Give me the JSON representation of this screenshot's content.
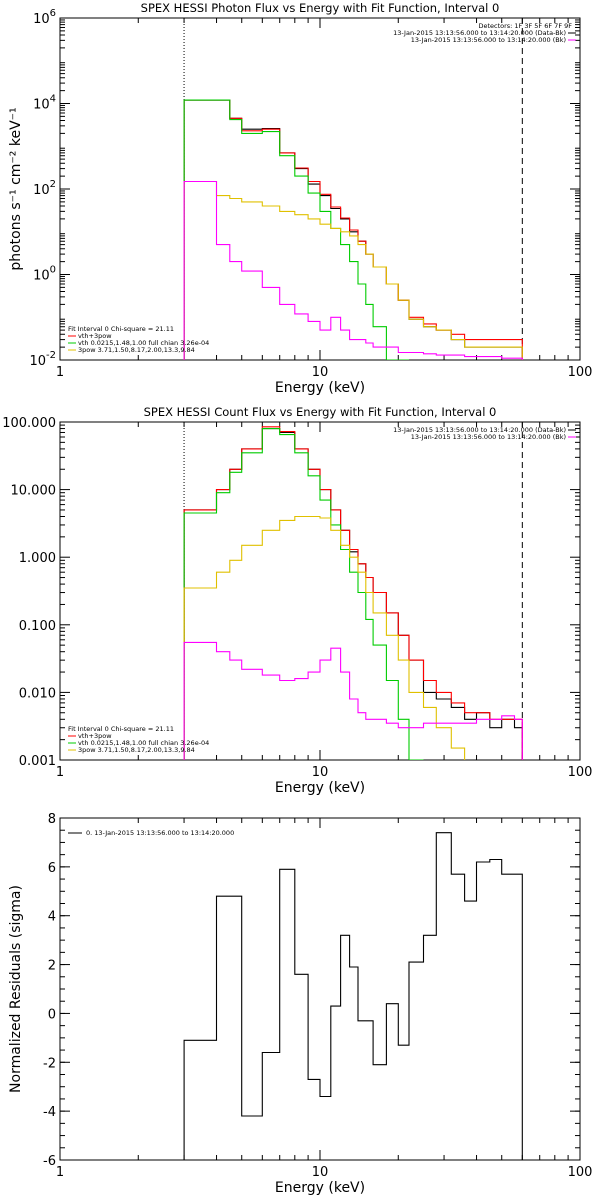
{
  "chart_data": [
    {
      "type": "line",
      "title": "SPEX HESSI Photon Flux vs Energy with Fit Function, Interval 0",
      "xlabel": "Energy (keV)",
      "ylabel": "photons s⁻¹ cm⁻² keV⁻¹",
      "x_scale": "log",
      "y_scale": "log",
      "xlim": [
        1,
        100
      ],
      "ylim": [
        0.01,
        1000000
      ],
      "x_ticks": [
        {
          "v": 1,
          "label": "1"
        },
        {
          "v": 10,
          "label": "10"
        },
        {
          "v": 100,
          "label": "100"
        }
      ],
      "y_ticks": [
        {
          "v": 0.01,
          "label": "10",
          "exp": "-2"
        },
        {
          "v": 1,
          "label": "10",
          "exp": "0"
        },
        {
          "v": 100,
          "label": "10",
          "exp": "2"
        },
        {
          "v": 10000,
          "label": "10",
          "exp": "4"
        },
        {
          "v": 1000000,
          "label": "10",
          "exp": "6"
        }
      ],
      "vlines": [
        {
          "x": 3,
          "style": "dotted"
        },
        {
          "x": 60,
          "style": "dashed"
        }
      ],
      "legend_top": {
        "header": "Detectors: 1F 3F 5F 6F 7F 9F",
        "entries": [
          {
            "label": "13-Jan-2015 13:13:56.000 to 13:14:20.000 (Data-Bk)",
            "color": "#000000"
          },
          {
            "label": "13-Jan-2015 13:13:56.000 to 13:14:20.000 (Bk)",
            "color": "#ff00ff"
          }
        ]
      },
      "legend_bottom": {
        "header": "Fit Interval 0   Chi-square = 21.11",
        "entries": [
          {
            "label": "vth+3pow",
            "color": "#ff0000"
          },
          {
            "label": "vth 0.0215,1.48,1.00  full chian 3.26e-04",
            "color": "#00cc00"
          },
          {
            "label": "3pow 3.71,1.50,8.17,2.00,13.3,9.84",
            "color": "#e0c000"
          }
        ]
      },
      "edges": [
        3.0,
        3.5,
        4.0,
        4.5,
        5.0,
        6.0,
        7.0,
        8.0,
        9.0,
        10.0,
        11.0,
        12.0,
        13.0,
        14.0,
        15.0,
        16.0,
        18.0,
        20.0,
        22.0,
        25.0,
        28.0,
        32.0,
        36.0,
        40.0,
        45.0,
        50.0,
        56.0,
        60.0
      ],
      "series": [
        {
          "color": "#000000",
          "values": [
            12000,
            12000,
            12000,
            4500,
            2500,
            2600,
            700,
            300,
            130,
            70,
            35,
            20,
            10,
            6,
            3,
            1.5,
            0.6,
            0.25,
            0.09,
            0.06,
            0.05,
            0.03,
            0.02,
            0.02,
            0.02,
            0.02,
            0.02
          ]
        },
        {
          "color": "#ff0000",
          "values": [
            12000,
            12000,
            12000,
            4500,
            2300,
            2500,
            700,
            310,
            150,
            75,
            38,
            21,
            11,
            6,
            3,
            1.5,
            0.6,
            0.25,
            0.1,
            0.07,
            0.05,
            0.04,
            0.03,
            0.03,
            0.03,
            0.03,
            0.03
          ]
        },
        {
          "color": "#00cc00",
          "values": [
            12000,
            12000,
            12000,
            4200,
            2000,
            2200,
            600,
            200,
            80,
            30,
            12,
            5,
            2,
            0.6,
            0.2,
            0.06,
            0.01,
            0.004,
            null,
            null,
            null,
            null,
            null,
            null,
            null,
            null,
            null
          ]
        },
        {
          "color": "#e0c000",
          "values": [
            150,
            150,
            70,
            60,
            50,
            40,
            30,
            25,
            20,
            15,
            12,
            10,
            8,
            5,
            3,
            1.5,
            0.6,
            0.25,
            0.09,
            0.06,
            0.05,
            0.03,
            0.02,
            0.02,
            0.02,
            0.02,
            0.02
          ]
        },
        {
          "color": "#ff00ff",
          "values": [
            150,
            150,
            5,
            2,
            1.2,
            0.5,
            0.2,
            0.12,
            0.08,
            0.05,
            0.1,
            0.05,
            0.03,
            0.03,
            0.025,
            0.02,
            0.02,
            0.015,
            0.015,
            0.014,
            0.013,
            0.013,
            0.012,
            0.012,
            0.012,
            0.011,
            0.011
          ]
        }
      ]
    },
    {
      "type": "line",
      "title": "SPEX HESSI Count Flux vs Energy with Fit Function, Interval 0",
      "xlabel": "Energy (keV)",
      "ylabel": "",
      "x_scale": "log",
      "y_scale": "log",
      "xlim": [
        1,
        100
      ],
      "ylim": [
        0.001,
        100
      ],
      "x_ticks": [
        {
          "v": 1,
          "label": "1"
        },
        {
          "v": 10,
          "label": "10"
        },
        {
          "v": 100,
          "label": "100"
        }
      ],
      "y_ticks": [
        {
          "v": 0.001,
          "label": "0.001"
        },
        {
          "v": 0.01,
          "label": "0.010"
        },
        {
          "v": 0.1,
          "label": "0.100"
        },
        {
          "v": 1,
          "label": "1.000"
        },
        {
          "v": 10,
          "label": "10.000"
        },
        {
          "v": 100,
          "label": "100.000"
        }
      ],
      "vlines": [
        {
          "x": 3,
          "style": "dotted"
        },
        {
          "x": 60,
          "style": "dashed"
        }
      ],
      "legend_top": {
        "header": "",
        "entries": [
          {
            "label": "13-Jan-2015 13:13:56.000 to 13:14:20.000 (Data-Bk)",
            "color": "#000000"
          },
          {
            "label": "13-Jan-2015 13:13:56.000 to 13:14:20.000 (Bk)",
            "color": "#ff00ff"
          }
        ]
      },
      "legend_bottom": {
        "header": "Fit Interval 0   Chi-square = 21.11",
        "entries": [
          {
            "label": "vth+3pow",
            "color": "#ff0000"
          },
          {
            "label": "vth 0.0215,1.48,1.00  full chian 3.26e-04",
            "color": "#00cc00"
          },
          {
            "label": "3pow 3.71,1.50,8.17,2.00,13.3,9.84",
            "color": "#e0c000"
          }
        ]
      },
      "edges": [
        3.0,
        3.5,
        4.0,
        4.5,
        5.0,
        6.0,
        7.0,
        8.0,
        9.0,
        10.0,
        11.0,
        12.0,
        13.0,
        14.0,
        15.0,
        16.0,
        18.0,
        20.0,
        22.0,
        25.0,
        28.0,
        32.0,
        36.0,
        40.0,
        45.0,
        50.0,
        56.0,
        60.0
      ],
      "series": [
        {
          "color": "#000000",
          "values": [
            5,
            5,
            10,
            20,
            40,
            80,
            70,
            40,
            20,
            10,
            5,
            2.5,
            1.2,
            0.8,
            0.5,
            0.3,
            0.15,
            0.07,
            0.03,
            0.01,
            0.008,
            0.006,
            0.004,
            0.005,
            0.003,
            0.004,
            0.003
          ]
        },
        {
          "color": "#ff0000",
          "values": [
            5,
            5,
            10,
            20,
            40,
            85,
            72,
            40,
            20,
            10,
            5,
            2.5,
            1.3,
            0.8,
            0.5,
            0.3,
            0.15,
            0.07,
            0.03,
            0.015,
            0.01,
            0.007,
            0.005,
            0.005,
            0.004,
            0.004,
            0.004
          ]
        },
        {
          "color": "#00cc00",
          "values": [
            4.5,
            4.5,
            9,
            18,
            35,
            80,
            65,
            35,
            16,
            7,
            3,
            1.3,
            0.6,
            0.3,
            0.12,
            0.05,
            0.015,
            0.004,
            0.001,
            null,
            null,
            null,
            null,
            null,
            null,
            null,
            null
          ]
        },
        {
          "color": "#e0c000",
          "values": [
            0.35,
            0.35,
            0.6,
            0.9,
            1.5,
            2.5,
            3.5,
            4,
            4,
            3.8,
            2.5,
            1.5,
            1,
            0.6,
            0.3,
            0.15,
            0.07,
            0.03,
            0.01,
            0.006,
            0.003,
            0.0015,
            null,
            null,
            null,
            null,
            null
          ]
        },
        {
          "color": "#ff00ff",
          "values": [
            0.055,
            0.055,
            0.04,
            0.03,
            0.022,
            0.018,
            0.015,
            0.016,
            0.02,
            0.03,
            0.045,
            0.02,
            0.008,
            0.005,
            0.004,
            0.004,
            0.0035,
            0.003,
            0.003,
            0.0035,
            0.0035,
            0.0035,
            0.0035,
            0.004,
            0.004,
            0.0045,
            0.004
          ]
        }
      ]
    },
    {
      "type": "line",
      "title": "",
      "xlabel": "Energy (keV)",
      "ylabel": "Normalized Residuals (sigma)",
      "x_scale": "log",
      "y_scale": "linear",
      "xlim": [
        1,
        100
      ],
      "ylim": [
        -6,
        8
      ],
      "x_ticks": [
        {
          "v": 1,
          "label": "1"
        },
        {
          "v": 10,
          "label": "10"
        },
        {
          "v": 100,
          "label": "100"
        }
      ],
      "y_ticks": [
        {
          "v": -6,
          "label": "-6"
        },
        {
          "v": -4,
          "label": "-4"
        },
        {
          "v": -2,
          "label": "-2"
        },
        {
          "v": 0,
          "label": "0"
        },
        {
          "v": 2,
          "label": "2"
        },
        {
          "v": 4,
          "label": "4"
        },
        {
          "v": 6,
          "label": "6"
        },
        {
          "v": 8,
          "label": "8"
        }
      ],
      "vlines": [],
      "legend_top": {
        "header": "",
        "entries": [
          {
            "label": "0. 13-Jan-2015 13:13:56.000 to 13:14:20.000",
            "color": "#000000"
          }
        ]
      },
      "legend_bottom": {
        "header": "",
        "entries": []
      },
      "edges": [
        3.0,
        3.5,
        4.0,
        4.5,
        5.0,
        6.0,
        7.0,
        8.0,
        9.0,
        10.0,
        11.0,
        12.0,
        13.0,
        14.0,
        15.0,
        16.0,
        18.0,
        20.0,
        22.0,
        25.0,
        28.0,
        32.0,
        36.0,
        40.0,
        45.0,
        50.0,
        56.0,
        60.0
      ],
      "series": [
        {
          "color": "#000000",
          "values": [
            -1.1,
            -1.1,
            4.8,
            4.8,
            -4.2,
            -1.6,
            5.9,
            1.6,
            -2.7,
            -3.4,
            0.3,
            3.2,
            1.9,
            -0.3,
            -0.3,
            -2.1,
            0.4,
            -1.3,
            2.1,
            3.2,
            7.4,
            5.7,
            4.6,
            6.2,
            6.3,
            5.7,
            5.7
          ]
        }
      ]
    }
  ]
}
